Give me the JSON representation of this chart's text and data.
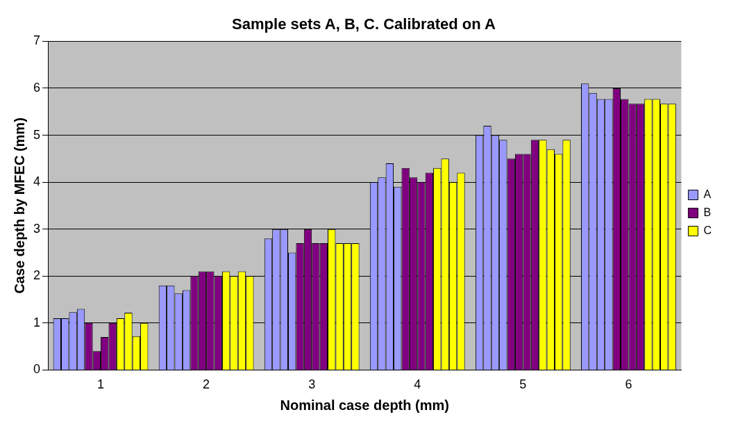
{
  "chart_data": {
    "type": "bar",
    "title": "Sample sets A, B, C. Calibrated on A",
    "xlabel": "Nominal case depth (mm)",
    "ylabel": "Case depth by MFEC (mm)",
    "categories": [
      "1",
      "2",
      "3",
      "4",
      "5",
      "6"
    ],
    "series": [
      {
        "name": "A",
        "color": "#9999ff",
        "values": [
          1.1,
          1.8,
          2.8,
          4.0,
          5.0,
          6.1
        ]
      },
      {
        "color": "#9999ff",
        "values": [
          1.1,
          1.8,
          3.0,
          4.1,
          5.2,
          5.9
        ]
      },
      {
        "color": "#9999ff",
        "values": [
          1.23,
          1.63,
          3.0,
          4.4,
          5.0,
          5.77
        ]
      },
      {
        "color": "#9999ff",
        "values": [
          1.3,
          1.7,
          2.5,
          3.9,
          4.9,
          5.77
        ]
      },
      {
        "name": "B",
        "color": "#800080",
        "values": [
          1.0,
          2.0,
          2.7,
          4.3,
          4.5,
          6.0
        ]
      },
      {
        "color": "#800080",
        "values": [
          0.4,
          2.1,
          3.0,
          4.1,
          4.6,
          5.77
        ]
      },
      {
        "color": "#800080",
        "values": [
          0.7,
          2.1,
          2.7,
          4.0,
          4.6,
          5.67
        ]
      },
      {
        "color": "#800080",
        "values": [
          1.0,
          2.0,
          2.7,
          4.2,
          4.9,
          5.67
        ]
      },
      {
        "name": "C",
        "color": "#ffff00",
        "values": [
          1.1,
          2.1,
          3.0,
          4.3,
          4.9,
          5.77
        ]
      },
      {
        "color": "#ffff00",
        "values": [
          1.22,
          2.0,
          2.7,
          4.5,
          4.7,
          5.77
        ]
      },
      {
        "color": "#ffff00",
        "values": [
          0.72,
          2.1,
          2.7,
          4.0,
          4.6,
          5.67
        ]
      },
      {
        "color": "#ffff00",
        "values": [
          1.0,
          2.0,
          2.7,
          4.2,
          4.9,
          5.67
        ]
      }
    ],
    "ylim": [
      0,
      7
    ],
    "yticks": [
      0,
      1,
      2,
      3,
      4,
      5,
      6,
      7
    ],
    "grid": "y",
    "legend": "right"
  }
}
